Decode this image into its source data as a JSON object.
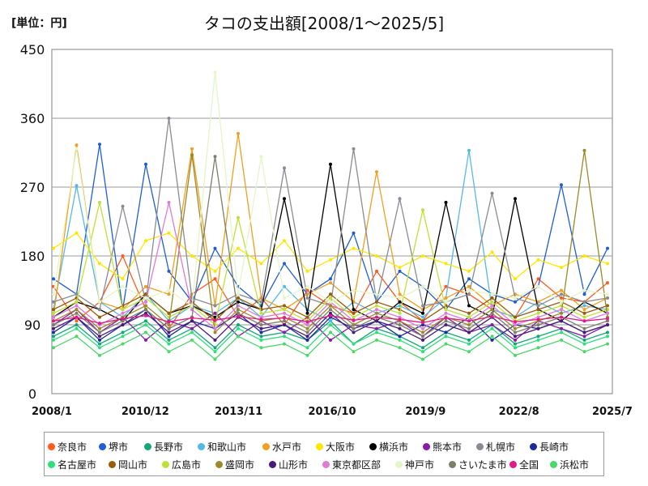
{
  "unit_label": "[単位：円]",
  "chart_data": {
    "type": "line",
    "title": "タコの支出額[2008/1～2025/5]",
    "xlabel": "",
    "ylabel": "",
    "ylim": [
      0,
      450
    ],
    "yticks": [
      0,
      90,
      180,
      270,
      360,
      450
    ],
    "x_start": "2008/1",
    "x_end": "2025/7",
    "x_tick_labels": [
      "2008/1",
      "2010/12",
      "2013/11",
      "2016/10",
      "2019/9",
      "2022/8",
      "2025/7"
    ],
    "grid": true,
    "legend_position": "bottom",
    "series": [
      {
        "name": "奈良市",
        "color": "#ff5a1f",
        "values": [
          140,
          95,
          120,
          180,
          110,
          85,
          130,
          150,
          100,
          125,
          90,
          135,
          115,
          105,
          160,
          120,
          95,
          140,
          130,
          110,
          100,
          150,
          125,
          120,
          145
        ]
      },
      {
        "name": "堺市",
        "color": "#1f5fd1",
        "values": [
          150,
          130,
          326,
          110,
          300,
          160,
          120,
          190,
          140,
          115,
          170,
          130,
          150,
          210,
          120,
          160,
          140,
          110,
          150,
          130,
          120,
          140,
          273,
          130,
          190
        ]
      },
      {
        "name": "長野市",
        "color": "#10a878",
        "values": [
          75,
          90,
          65,
          80,
          95,
          70,
          85,
          60,
          90,
          75,
          80,
          70,
          95,
          65,
          85,
          75,
          60,
          80,
          70,
          90,
          65,
          75,
          85,
          70,
          80
        ]
      },
      {
        "name": "和歌山市",
        "color": "#55b9e8",
        "values": [
          110,
          272,
          120,
          100,
          130,
          95,
          115,
          105,
          125,
          100,
          140,
          110,
          95,
          120,
          105,
          115,
          100,
          125,
          318,
          110,
          100,
          120,
          105,
          115,
          110
        ]
      },
      {
        "name": "水戸市",
        "color": "#f0a020",
        "values": [
          100,
          325,
          120,
          110,
          140,
          130,
          320,
          115,
          340,
          125,
          110,
          130,
          145,
          120,
          290,
          130,
          110,
          125,
          140,
          115,
          130,
          120,
          135,
          110,
          125
        ]
      },
      {
        "name": "大阪市",
        "color": "#ffe600",
        "values": [
          190,
          210,
          170,
          150,
          200,
          210,
          180,
          160,
          190,
          170,
          200,
          160,
          175,
          190,
          180,
          165,
          180,
          170,
          160,
          185,
          150,
          175,
          165,
          180,
          170
        ]
      },
      {
        "name": "横浜市",
        "color": "#000000",
        "values": [
          100,
          120,
          110,
          95,
          130,
          105,
          115,
          100,
          120,
          110,
          255,
          105,
          300,
          110,
          95,
          120,
          105,
          250,
          115,
          100,
          255,
          110,
          95,
          120,
          105
        ]
      },
      {
        "name": "熊本市",
        "color": "#8a1aa8",
        "values": [
          90,
          110,
          80,
          100,
          70,
          95,
          85,
          105,
          75,
          95,
          80,
          100,
          70,
          90,
          85,
          95,
          75,
          100,
          80,
          90,
          70,
          95,
          85,
          75,
          90
        ]
      },
      {
        "name": "札幌市",
        "color": "#888c94",
        "values": [
          120,
          130,
          110,
          245,
          120,
          360,
          125,
          115,
          130,
          120,
          295,
          125,
          115,
          320,
          120,
          255,
          115,
          120,
          130,
          262,
          125,
          115,
          130,
          120,
          125
        ]
      },
      {
        "name": "長崎市",
        "color": "#1b2b9e",
        "values": [
          80,
          100,
          70,
          90,
          110,
          75,
          95,
          85,
          105,
          80,
          90,
          70,
          100,
          85,
          95,
          75,
          90,
          80,
          100,
          70,
          90,
          85,
          95,
          80,
          90
        ]
      },
      {
        "name": "名古屋市",
        "color": "#2ee07a",
        "values": [
          70,
          85,
          60,
          75,
          90,
          65,
          80,
          55,
          85,
          70,
          75,
          60,
          90,
          65,
          80,
          70,
          55,
          75,
          65,
          85,
          60,
          70,
          80,
          65,
          75
        ]
      },
      {
        "name": "岡山市",
        "color": "#9a5c08",
        "values": [
          110,
          125,
          100,
          115,
          130,
          105,
          120,
          95,
          125,
          110,
          115,
          100,
          130,
          105,
          120,
          110,
          95,
          115,
          105,
          125,
          100,
          110,
          120,
          105,
          115
        ]
      },
      {
        "name": "広島市",
        "color": "#bfe03a",
        "values": [
          105,
          120,
          250,
          110,
          125,
          100,
          115,
          90,
          230,
          105,
          110,
          95,
          125,
          100,
          115,
          105,
          240,
          110,
          100,
          120,
          95,
          105,
          115,
          100,
          110
        ]
      },
      {
        "name": "盛岡市",
        "color": "#9a8a2a",
        "values": [
          95,
          110,
          85,
          100,
          115,
          90,
          312,
          80,
          110,
          95,
          100,
          85,
          115,
          90,
          105,
          95,
          80,
          100,
          90,
          110,
          85,
          95,
          105,
          318,
          100
        ]
      },
      {
        "name": "山形市",
        "color": "#4a1a7a",
        "values": [
          85,
          100,
          75,
          90,
          105,
          80,
          95,
          70,
          100,
          85,
          90,
          75,
          105,
          80,
          95,
          85,
          70,
          90,
          80,
          100,
          75,
          85,
          95,
          80,
          90
        ]
      },
      {
        "name": "東京都区部",
        "color": "#e07ad8",
        "values": [
          100,
          115,
          90,
          105,
          120,
          250,
          110,
          85,
          115,
          100,
          105,
          90,
          120,
          95,
          110,
          100,
          85,
          105,
          95,
          115,
          90,
          100,
          110,
          95,
          105
        ]
      },
      {
        "name": "神戸市",
        "color": "#e4f5c8",
        "values": [
          130,
          320,
          120,
          140,
          125,
          135,
          115,
          420,
          130,
          310,
          125,
          140,
          120,
          135,
          130,
          125,
          140,
          120,
          135,
          130,
          125,
          140,
          120,
          135,
          130
        ]
      },
      {
        "name": "さいたま市",
        "color": "#7e7e6a",
        "values": [
          90,
          105,
          80,
          95,
          110,
          85,
          100,
          310,
          105,
          90,
          95,
          80,
          110,
          85,
          100,
          90,
          75,
          95,
          85,
          105,
          80,
          90,
          100,
          85,
          95
        ]
      },
      {
        "name": "全国",
        "color": "#e01a8a",
        "values": [
          95,
          100,
          92,
          98,
          102,
          94,
          99,
          96,
          101,
          97,
          99,
          94,
          102,
          96,
          100,
          97,
          93,
          99,
          95,
          101,
          94,
          97,
          100,
          95,
          98
        ]
      },
      {
        "name": "浜松市",
        "color": "#4ad86a",
        "values": [
          60,
          75,
          50,
          65,
          80,
          55,
          70,
          45,
          75,
          60,
          65,
          50,
          80,
          55,
          70,
          60,
          45,
          65,
          55,
          75,
          50,
          60,
          70,
          55,
          65
        ]
      }
    ]
  }
}
